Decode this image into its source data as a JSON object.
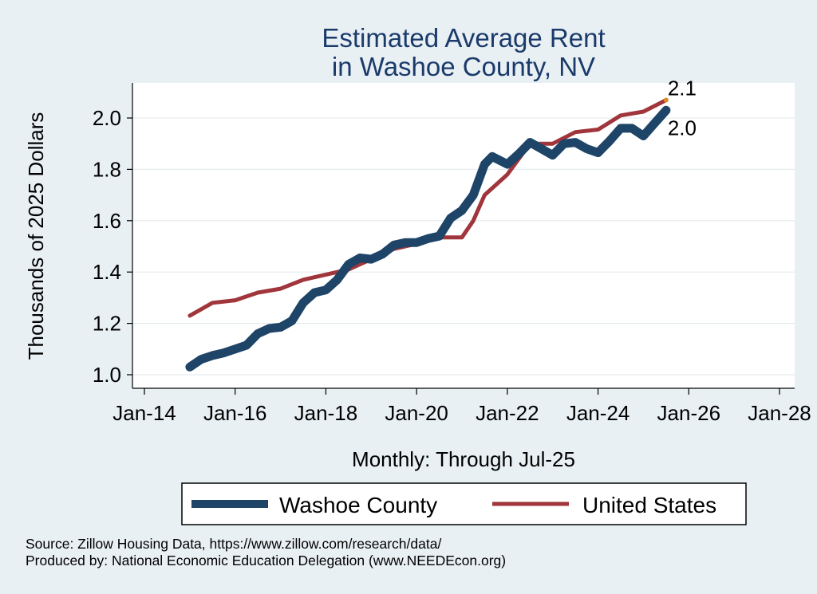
{
  "chart_data": {
    "type": "line",
    "title": [
      "Estimated Average Rent",
      "in Washoe County, NV"
    ],
    "xlabel": "Monthly: Through Jul-25",
    "ylabel": "Thousands of 2025 Dollars",
    "x_ticks": [
      "Jan-14",
      "Jan-16",
      "Jan-18",
      "Jan-20",
      "Jan-22",
      "Jan-24",
      "Jan-26",
      "Jan-28"
    ],
    "y_ticks": [
      "1.0",
      "1.2",
      "1.4",
      "1.6",
      "1.8",
      "2.0"
    ],
    "xlim": [
      "Jan-14",
      "Jan-28"
    ],
    "ylim": [
      0.98,
      2.12
    ],
    "grid": true,
    "legend_position": "bottom",
    "series": [
      {
        "name": "Washoe County",
        "color": "#1e4468",
        "end_label": "2.0",
        "points": [
          [
            "Jan-15",
            1.03
          ],
          [
            "Apr-15",
            1.06
          ],
          [
            "Jul-15",
            1.075
          ],
          [
            "Oct-15",
            1.085
          ],
          [
            "Jan-16",
            1.1
          ],
          [
            "Apr-16",
            1.115
          ],
          [
            "Jul-16",
            1.16
          ],
          [
            "Oct-16",
            1.18
          ],
          [
            "Jan-17",
            1.185
          ],
          [
            "Apr-17",
            1.21
          ],
          [
            "Jul-17",
            1.28
          ],
          [
            "Oct-17",
            1.32
          ],
          [
            "Jan-18",
            1.33
          ],
          [
            "Apr-18",
            1.37
          ],
          [
            "Jul-18",
            1.43
          ],
          [
            "Oct-18",
            1.455
          ],
          [
            "Jan-19",
            1.45
          ],
          [
            "Apr-19",
            1.47
          ],
          [
            "Jul-19",
            1.505
          ],
          [
            "Oct-19",
            1.515
          ],
          [
            "Jan-20",
            1.515
          ],
          [
            "Apr-20",
            1.53
          ],
          [
            "Jul-20",
            1.54
          ],
          [
            "Oct-20",
            1.61
          ],
          [
            "Jan-21",
            1.64
          ],
          [
            "Apr-21",
            1.7
          ],
          [
            "Jul-21",
            1.82
          ],
          [
            "Sep-21",
            1.85
          ],
          [
            "Jan-22",
            1.82
          ],
          [
            "Apr-22",
            1.86
          ],
          [
            "Jul-22",
            1.905
          ],
          [
            "Oct-22",
            1.88
          ],
          [
            "Jan-23",
            1.855
          ],
          [
            "Apr-23",
            1.9
          ],
          [
            "Jul-23",
            1.905
          ],
          [
            "Oct-23",
            1.88
          ],
          [
            "Jan-24",
            1.865
          ],
          [
            "Apr-24",
            1.91
          ],
          [
            "Jul-24",
            1.96
          ],
          [
            "Oct-24",
            1.96
          ],
          [
            "Jan-25",
            1.93
          ],
          [
            "Apr-25",
            1.98
          ],
          [
            "Jul-25",
            2.03
          ]
        ]
      },
      {
        "name": "United States",
        "color": "#a0353b",
        "end_label": "2.1",
        "points": [
          [
            "Jan-15",
            1.23
          ],
          [
            "Jul-15",
            1.28
          ],
          [
            "Jan-16",
            1.29
          ],
          [
            "Jul-16",
            1.32
          ],
          [
            "Jan-17",
            1.335
          ],
          [
            "Jul-17",
            1.37
          ],
          [
            "Jan-18",
            1.39
          ],
          [
            "Jul-18",
            1.41
          ],
          [
            "Jan-19",
            1.45
          ],
          [
            "Jul-19",
            1.49
          ],
          [
            "Jan-20",
            1.51
          ],
          [
            "Jul-20",
            1.535
          ],
          [
            "Jan-21",
            1.535
          ],
          [
            "Apr-21",
            1.6
          ],
          [
            "Jul-21",
            1.7
          ],
          [
            "Jan-22",
            1.78
          ],
          [
            "Jul-22",
            1.9
          ],
          [
            "Jan-23",
            1.9
          ],
          [
            "Jul-23",
            1.945
          ],
          [
            "Jan-24",
            1.955
          ],
          [
            "Jul-24",
            2.01
          ],
          [
            "Jan-25",
            2.025
          ],
          [
            "Jul-25",
            2.07
          ]
        ]
      }
    ]
  },
  "source_lines": [
    "Source: Zillow Housing Data, https://www.zillow.com/research/data/",
    "Produced by: National Economic Education Delegation (www.NEEDEcon.org)"
  ]
}
